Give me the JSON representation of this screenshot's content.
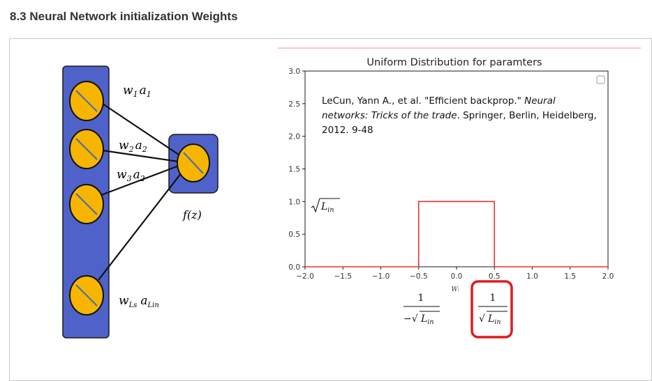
{
  "page": {
    "heading": "8.3 Neural Network initialization Weights"
  },
  "network": {
    "w1": "w",
    "w1_sub": "1",
    "a1": "a",
    "a1_sub": "1",
    "w2": "w",
    "w2_sub": "2",
    "a2": "a",
    "a2_sub": "2",
    "w3": "w",
    "w3_sub": "3",
    "a3": "a",
    "a3_sub": "2",
    "wls": "w",
    "wls_sub": "Ls",
    "alin": "a",
    "alin_sub": "Lin",
    "fz": "f(z)"
  },
  "chart_data": {
    "type": "line",
    "title": "Uniform Distribution for paramters",
    "xlabel": "Wᵢ",
    "ylabel": "",
    "xlim": [
      -2.0,
      2.0
    ],
    "ylim": [
      0.0,
      3.0
    ],
    "xticks": [
      "−2.0",
      "−1.5",
      "−1.0",
      "−0.5",
      "0.0",
      "0.5",
      "1.0",
      "1.5",
      "2.0"
    ],
    "yticks": [
      "0.0",
      "0.5",
      "1.0",
      "1.5",
      "2.0",
      "2.5",
      "3.0"
    ],
    "xtick_values": [
      -2.0,
      -1.5,
      -1.0,
      -0.5,
      0.0,
      0.5,
      1.0,
      1.5,
      2.0
    ],
    "ytick_values": [
      0.0,
      0.5,
      1.0,
      1.5,
      2.0,
      2.5,
      3.0
    ],
    "series": [
      {
        "color": "#e8312f",
        "x": [
          -2.0,
          -0.5,
          -0.5,
          0.5,
          0.5,
          2.0
        ],
        "y": [
          0.0,
          0.0,
          1.0,
          1.0,
          0.0,
          0.0
        ]
      }
    ],
    "annotations": {
      "citation_part1": "LeCun, Yann A., et al. \"Efficient backprop.\" ",
      "citation_italic1": "Neural",
      "citation_italic2": "networks: Tricks of the trade",
      "citation_part2": ". Springer, Berlin, Heidelberg,",
      "citation_part3": "2012. 9-48",
      "height_label_L": "L",
      "height_label_sub": "in",
      "lower_bound_num": "1",
      "lower_bound_den": "−√",
      "lower_bound_L": "L",
      "lower_bound_sub": "in",
      "upper_bound_num": "1",
      "upper_bound_den": "√",
      "upper_bound_L": "L",
      "upper_bound_sub": "in"
    },
    "colors": {
      "box": "#e01b1b",
      "node_fill": "#f7b500",
      "column_fill": "#4f62c9",
      "slash": "#4a6fa8"
    }
  }
}
